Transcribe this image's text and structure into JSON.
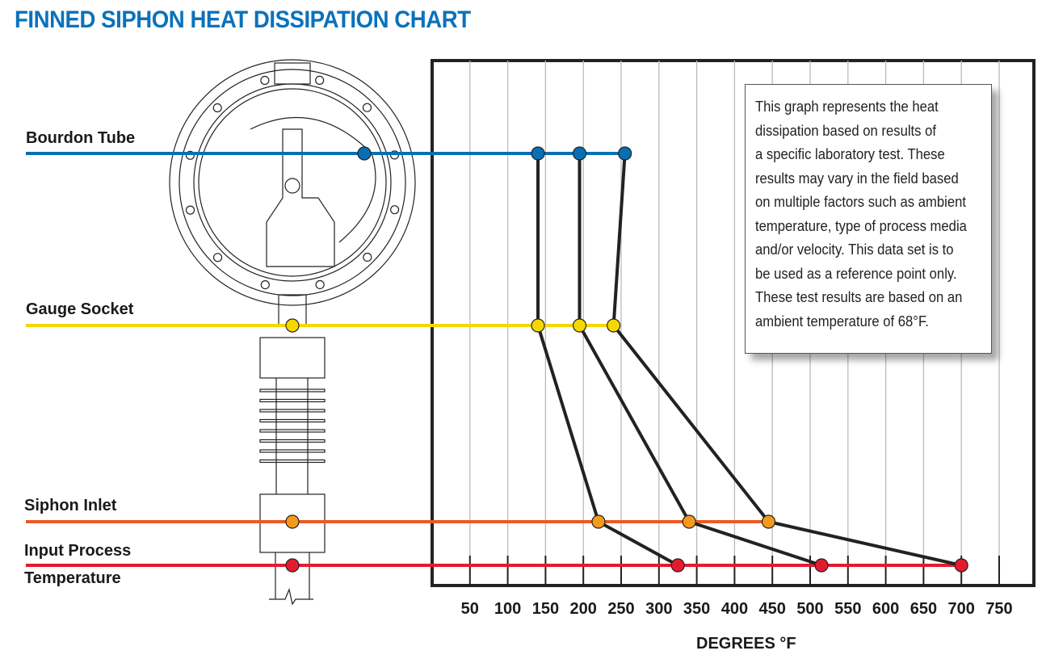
{
  "title": "FINNED SIPHON HEAT DISSIPATION CHART",
  "rows": [
    {
      "label": "Bourdon Tube",
      "color": "#0a6eb4",
      "point_color": "#0a6eb4"
    },
    {
      "label": "Gauge Socket",
      "color": "#f5d800",
      "point_color": "#f5d800"
    },
    {
      "label": "Siphon Inlet",
      "color": "#ea5a24",
      "point_color": "#f39a1e"
    },
    {
      "label": "Input Process",
      "label2": "Temperature",
      "color": "#e31b2f",
      "point_color": "#e31b2f"
    }
  ],
  "note": [
    "This graph represents the heat",
    "dissipation based on results of",
    "a specific laboratory test. These",
    "results may vary in the field based",
    "on multiple factors such as ambient",
    "temperature, type of process media",
    "and/or velocity. This data set is to",
    "be used as a reference point only.",
    "These test results are based on an",
    "ambient temperature of 68°F."
  ],
  "chart_data": {
    "type": "line",
    "title": "FINNED SIPHON HEAT DISSIPATION CHART",
    "xlabel": "DEGREES °F",
    "xlim": [
      0,
      790
    ],
    "xticks": [
      50,
      100,
      150,
      200,
      250,
      300,
      350,
      400,
      450,
      500,
      550,
      600,
      650,
      700,
      750
    ],
    "categories": [
      "Bourdon Tube",
      "Gauge Socket",
      "Siphon Inlet",
      "Input Process Temperature"
    ],
    "series": [
      {
        "values": [
          140,
          140,
          220,
          325
        ]
      },
      {
        "values": [
          195,
          195,
          340,
          515
        ]
      },
      {
        "values": [
          255,
          240,
          445,
          700
        ]
      }
    ],
    "grid": true
  }
}
